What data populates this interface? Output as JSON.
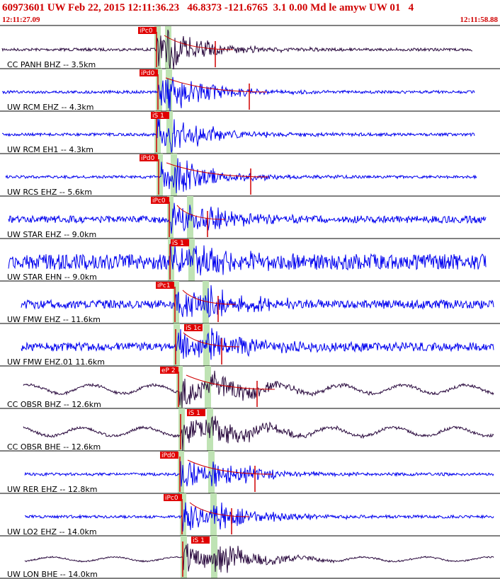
{
  "header": {
    "title": "60973601 UW Feb 22, 2015 12:11:36.23   46.8373 -121.6765  3.1 0.00 Md le amyw UW 01   4",
    "start_time": "12:11:27.09",
    "end_time": "12:11:58.88"
  },
  "traces": [
    {
      "label": "CC PANH BHZ -- 3.5km",
      "pick": "iPc0"
    },
    {
      "label": "UW RCM EHZ -- 4.3km",
      "pick": "iPd0"
    },
    {
      "label": "UW RCM EH1 -- 4.3km",
      "pick": "iS 1"
    },
    {
      "label": "UW RCS EHZ -- 5.6km",
      "pick": "iPd0"
    },
    {
      "label": "UW STAR EHZ -- 9.0km",
      "pick": "iPc0"
    },
    {
      "label": "UW STAR EHN -- 9.0km",
      "pick": "iS 1"
    },
    {
      "label": "UW FMW EHZ -- 11.6km",
      "pick": "iPc1"
    },
    {
      "label": "UW FMW EHZ.01 11.6km",
      "pick": "iS 1c"
    },
    {
      "label": "CC OBSR BHZ -- 12.6km",
      "pick": "eP 2"
    },
    {
      "label": "CC OBSR BHE -- 12.6km",
      "pick": "iS 1"
    },
    {
      "label": "UW RER EHZ -- 12.8km",
      "pick": "iPd0"
    },
    {
      "label": "UW LO2 EHZ -- 14.0km",
      "pick": "iPc0"
    },
    {
      "label": "UW LON BHE -- 14.0km",
      "pick": "iS 1"
    }
  ]
}
